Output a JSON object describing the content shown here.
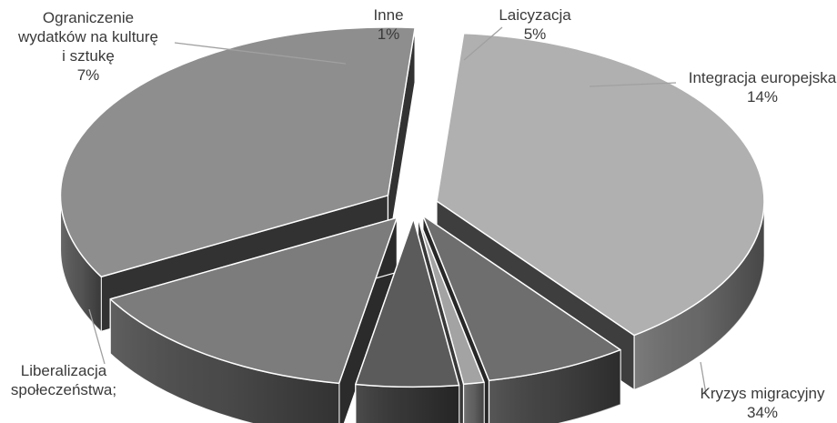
{
  "chart_data": {
    "type": "pie",
    "style": "3d-exploded",
    "title": "",
    "legend": "none",
    "slices": [
      {
        "label": [
          "Laicyzacja"
        ],
        "value": 5,
        "value_label": "5%",
        "color": "#5b5b5b"
      },
      {
        "label": [
          "Integracja europejska"
        ],
        "value": 14,
        "value_label": "14%",
        "color": "#7c7c7c"
      },
      {
        "label": [
          "Kryzys migracyjny"
        ],
        "value": 34,
        "value_label": "34%",
        "color": "#8e8e8e"
      },
      {
        "label": [
          "Liberalizacja",
          "społeczeństwa;"
        ],
        "value": 38,
        "value_label": "",
        "color": "#b0b0b0"
      },
      {
        "label": [
          "Ograniczenie",
          "wydatków na kulturę",
          "i sztukę"
        ],
        "value": 7,
        "value_label": "7%",
        "color": "#6e6e6e"
      },
      {
        "label": [
          "Inne"
        ],
        "value": 1,
        "value_label": "1%",
        "color": "#a3a3a3"
      }
    ]
  }
}
